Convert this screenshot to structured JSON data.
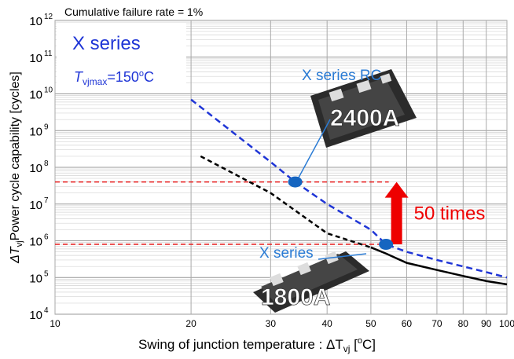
{
  "chart_data": {
    "type": "line",
    "title": "Cumulative failure rate = 1%",
    "xlabel": [
      "Swing of junction temperature : ΔT",
      "vj",
      " [",
      "o",
      "C]"
    ],
    "ylabel": [
      "ΔT",
      "vj",
      "Power cycle  capability [cycles]"
    ],
    "log_x": true,
    "log_y": true,
    "grid": true,
    "xlim": [
      10,
      100
    ],
    "xticks": [
      10,
      20,
      30,
      40,
      50,
      60,
      70,
      80,
      90,
      100
    ],
    "ylim": [
      10000,
      1000000000000
    ],
    "yticks": [
      {
        "value": 10000,
        "label": "10",
        "power": "4"
      },
      {
        "value": 100000,
        "label": "10",
        "power": "5"
      },
      {
        "value": 1000000,
        "label": "10",
        "power": "6"
      },
      {
        "value": 10000000,
        "label": "10",
        "power": "7"
      },
      {
        "value": 100000000,
        "label": "10",
        "power": "8"
      },
      {
        "value": 1000000000,
        "label": "10",
        "power": "9"
      },
      {
        "value": 10000000000,
        "label": "10",
        "power": "10"
      },
      {
        "value": 100000000000,
        "label": "10",
        "power": "11"
      },
      {
        "value": 1000000000000,
        "label": "10",
        "power": "12"
      }
    ],
    "series": [
      {
        "name": "X series RC",
        "color": "#1f35d6",
        "dashed": true,
        "x": [
          20,
          30,
          34,
          40,
          50,
          54,
          60,
          70,
          80,
          90,
          100
        ],
        "values": [
          7000000000,
          140000000,
          40000000,
          10000000,
          2000000,
          800000,
          500000,
          300000,
          200000,
          140000,
          100000
        ]
      },
      {
        "name": "X series",
        "color": "#000000",
        "dashed_until_x": 50,
        "x": [
          21,
          30,
          40,
          50,
          54,
          60,
          70,
          80,
          90,
          100
        ],
        "values": [
          200000000,
          20000000,
          1600000,
          660000,
          450000,
          250000,
          160000,
          110000,
          80000,
          65000
        ]
      }
    ],
    "reference_lines": {
      "color": "#e51c1c",
      "values": [
        40000000,
        800000
      ]
    },
    "markers": {
      "color": "#1565c0",
      "x": [
        34,
        54
      ],
      "values": [
        40000000,
        800000
      ]
    },
    "arrow": {
      "color": "#ee0000",
      "x": 57,
      "label": "50 times"
    },
    "annotations": {
      "series_box": "X series",
      "temperature": [
        "T",
        "vjmax",
        "=150",
        "o",
        "C"
      ],
      "rc_label": "X series RC",
      "x_label": "X series",
      "module_rc": "2400A",
      "module_x": "1800A"
    }
  }
}
